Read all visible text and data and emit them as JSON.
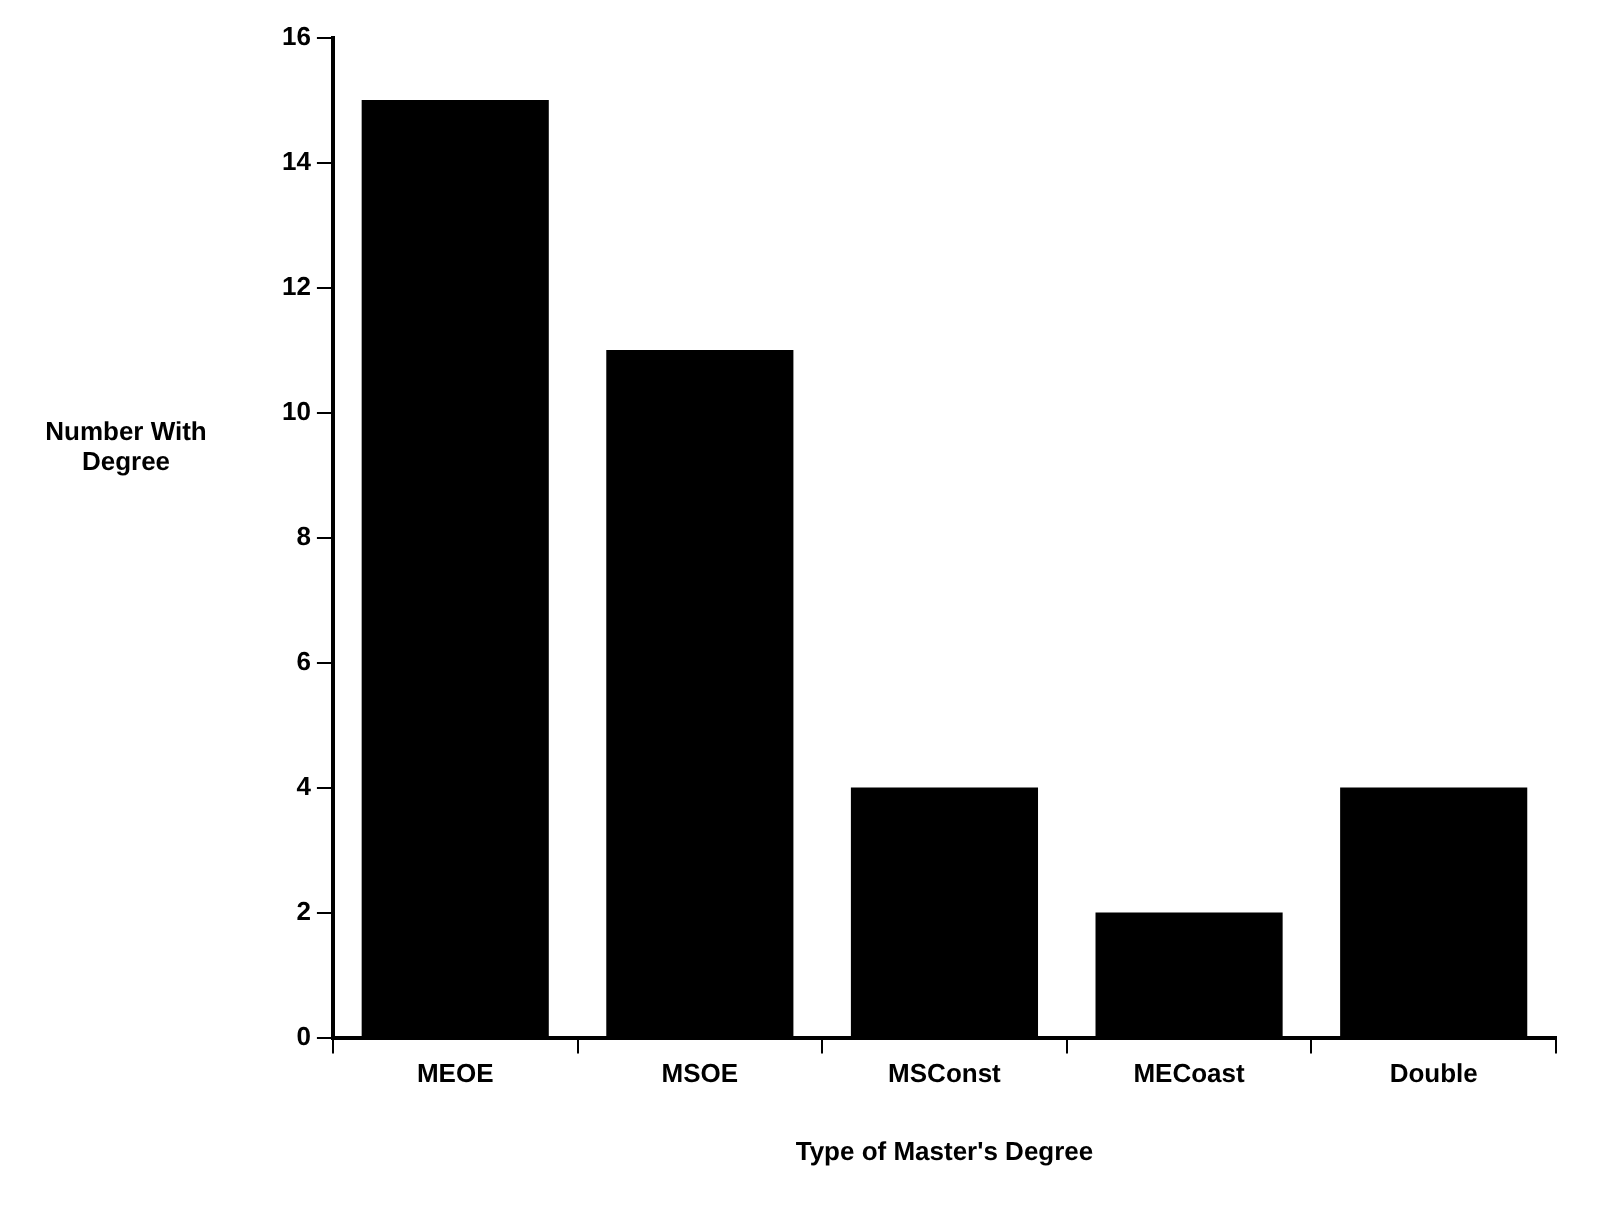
{
  "chart_data": {
    "type": "bar",
    "xlabel": "Type of Master's Degree",
    "ylabel": "Number With Degree",
    "categories": [
      "MEOE",
      "MSOE",
      "MSConst",
      "MECoast",
      "Double"
    ],
    "values": [
      15,
      11,
      4,
      2,
      4
    ],
    "color": "#000000",
    "ylim": [
      0,
      16
    ],
    "yticks": [
      0,
      2,
      4,
      6,
      8,
      10,
      12,
      14,
      16
    ],
    "grid": false,
    "legend": false
  }
}
